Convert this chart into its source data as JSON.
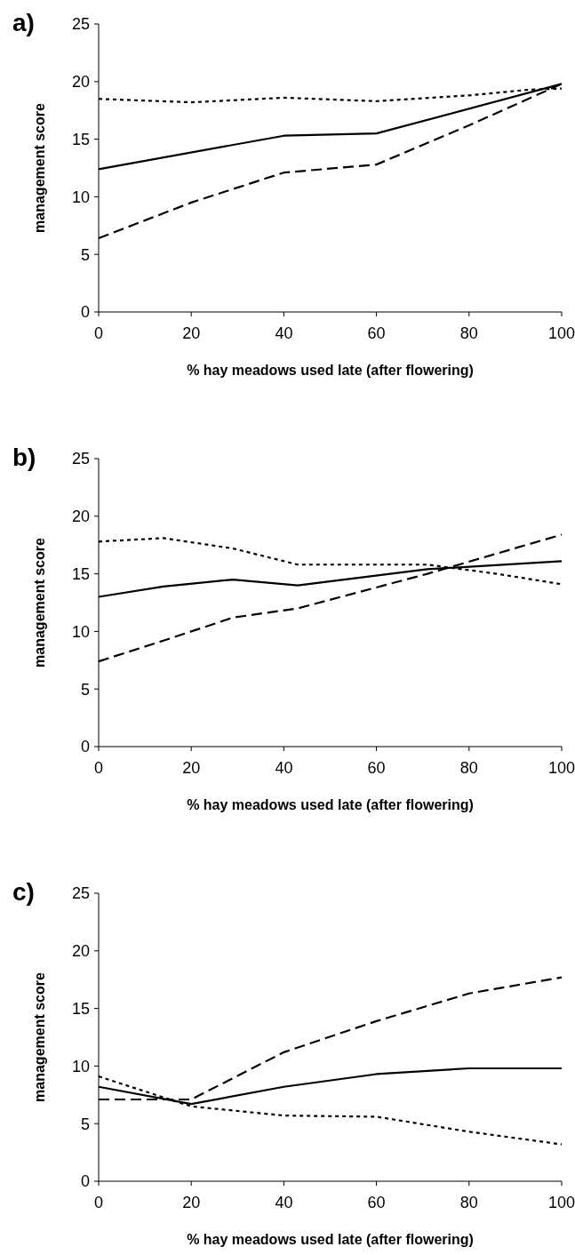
{
  "chart_data": [
    {
      "type": "line",
      "title": "a)",
      "xlabel": "% hay meadows used late (after flowering)",
      "ylabel": "management score",
      "xlim": [
        0,
        100
      ],
      "xticks": [
        0,
        20,
        40,
        60,
        80,
        100
      ],
      "ylim": [
        0,
        25
      ],
      "yticks": [
        0,
        5,
        10,
        15,
        20,
        25
      ],
      "series": [
        {
          "color": "#000000",
          "line_style": "solid",
          "x": [
            0,
            40,
            60,
            100
          ],
          "values": [
            12.4,
            15.3,
            15.5,
            19.8
          ]
        },
        {
          "color": "#000000",
          "line_style": "dotted",
          "x": [
            0,
            20,
            40,
            60,
            80,
            93,
            100
          ],
          "values": [
            18.5,
            18.2,
            18.6,
            18.3,
            18.8,
            19.3,
            19.4
          ]
        },
        {
          "color": "#000000",
          "line_style": "dashed",
          "x": [
            0,
            20,
            40,
            60,
            80,
            100
          ],
          "values": [
            6.4,
            9.5,
            12.1,
            12.8,
            16.2,
            19.8
          ]
        }
      ]
    },
    {
      "type": "line",
      "title": "b)",
      "xlabel": "% hay meadows used late (after flowering)",
      "ylabel": "management score",
      "xlim": [
        0,
        100
      ],
      "xticks": [
        0,
        20,
        40,
        60,
        80,
        100
      ],
      "ylim": [
        0,
        25
      ],
      "yticks": [
        0,
        5,
        10,
        15,
        20,
        25
      ],
      "series": [
        {
          "color": "#000000",
          "line_style": "solid",
          "x": [
            0,
            14,
            29,
            43,
            71,
            100
          ],
          "values": [
            13.0,
            13.9,
            14.5,
            14.0,
            15.4,
            16.1
          ]
        },
        {
          "color": "#000000",
          "line_style": "dotted",
          "x": [
            0,
            14,
            29,
            43,
            71,
            86,
            100
          ],
          "values": [
            17.8,
            18.1,
            17.2,
            15.8,
            15.8,
            15.0,
            14.1
          ]
        },
        {
          "color": "#000000",
          "line_style": "dashed",
          "x": [
            0,
            14,
            29,
            43,
            71,
            100
          ],
          "values": [
            7.4,
            9.2,
            11.2,
            12.0,
            15.0,
            18.4
          ]
        }
      ]
    },
    {
      "type": "line",
      "title": "c)",
      "xlabel": "% hay meadows used late (after flowering)",
      "ylabel": "management score",
      "xlim": [
        0,
        100
      ],
      "xticks": [
        0,
        20,
        40,
        60,
        80,
        100
      ],
      "ylim": [
        0,
        25
      ],
      "yticks": [
        0,
        5,
        10,
        15,
        20,
        25
      ],
      "series": [
        {
          "color": "#000000",
          "line_style": "solid",
          "x": [
            0,
            20,
            40,
            60,
            80,
            100
          ],
          "values": [
            8.2,
            6.7,
            8.2,
            9.3,
            9.8,
            9.8
          ]
        },
        {
          "color": "#000000",
          "line_style": "dotted",
          "x": [
            0,
            20,
            40,
            60,
            80,
            100
          ],
          "values": [
            9.1,
            6.5,
            5.7,
            5.6,
            4.3,
            3.2
          ]
        },
        {
          "color": "#000000",
          "line_style": "dashed",
          "x": [
            0,
            20,
            40,
            60,
            80,
            100
          ],
          "values": [
            7.1,
            7.1,
            11.2,
            13.9,
            16.3,
            17.7
          ]
        }
      ]
    }
  ]
}
